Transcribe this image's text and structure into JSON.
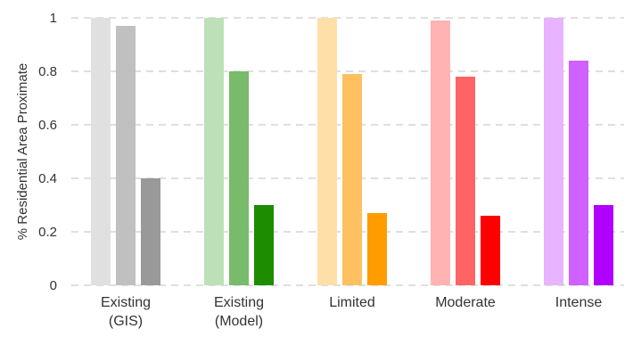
{
  "chart_data": {
    "type": "bar",
    "ylabel": "% Residential Area Proximate",
    "xlabel": "",
    "ylim": [
      0,
      1
    ],
    "yticks": [
      0,
      0.2,
      0.4,
      0.6,
      0.8,
      1
    ],
    "ytick_labels": [
      "0",
      "0.2",
      "0.4",
      "0.6",
      "0.8",
      "1"
    ],
    "grid": "horizontal-dashed",
    "categories": [
      {
        "label_lines": [
          "Existing",
          "(GIS)"
        ]
      },
      {
        "label_lines": [
          "Existing",
          "(Model)"
        ]
      },
      {
        "label_lines": [
          "Limited"
        ]
      },
      {
        "label_lines": [
          "Moderate"
        ]
      },
      {
        "label_lines": [
          "Intense"
        ]
      }
    ],
    "groups": [
      {
        "values": [
          1.0,
          0.97,
          0.4
        ],
        "colors": [
          "#e0e0e0",
          "#c0c0c0",
          "#999999"
        ]
      },
      {
        "values": [
          1.0,
          0.8,
          0.3
        ],
        "colors": [
          "#bde0b8",
          "#77bb6b",
          "#1e8c00"
        ]
      },
      {
        "values": [
          1.0,
          0.79,
          0.27
        ],
        "colors": [
          "#ffdfa8",
          "#ffc061",
          "#ff9d00"
        ]
      },
      {
        "values": [
          0.99,
          0.78,
          0.26
        ],
        "colors": [
          "#ffb3b3",
          "#ff6464",
          "#ff0000"
        ]
      },
      {
        "values": [
          1.0,
          0.84,
          0.3
        ],
        "colors": [
          "#e8b3ff",
          "#d060ff",
          "#b000ff"
        ]
      }
    ]
  }
}
